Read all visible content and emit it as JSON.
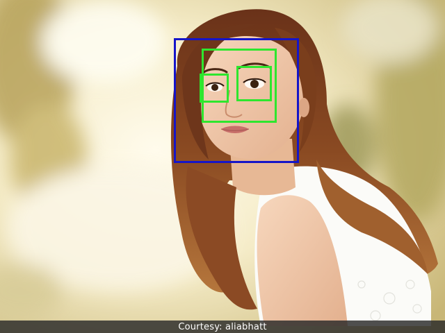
{
  "caption": {
    "text": "Courtesy: aliabhatt"
  },
  "colors": {
    "face_box": "#1515c8",
    "eye_box": "#2ee62e",
    "caption_bar": "#282828",
    "caption_text": "#ffffff",
    "hair": "#7a3e1c",
    "skin": "#f0c8aa",
    "top": "#ffffff"
  },
  "detections": [
    {
      "label": "face",
      "color": "#1515c8"
    },
    {
      "label": "eye-region",
      "color": "#2ee62e"
    },
    {
      "label": "eye",
      "color": "#2ee62e"
    },
    {
      "label": "eye",
      "color": "#2ee62e"
    }
  ]
}
